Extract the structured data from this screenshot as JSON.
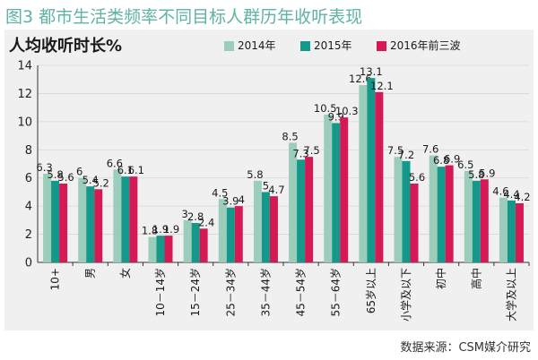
{
  "figure_title": "图3 都市生活类频率不同目标人群历年收听表现",
  "source_note": "数据来源：CSM媒介研究",
  "colors": {
    "title": "#5fb3a4",
    "panel_bg": "#f0f0f0",
    "axis": "#333333",
    "grid": "#d6d6d6"
  },
  "chart_data": {
    "type": "bar",
    "title": "人均收听时长%",
    "xlabel": "",
    "ylabel": "",
    "ylim": [
      0,
      14
    ],
    "yticks": [
      0,
      2,
      4,
      6,
      8,
      10,
      12,
      14
    ],
    "grid": true,
    "legend_position": "top",
    "categories": [
      "10+",
      "男",
      "女",
      "10－14岁",
      "15－24岁",
      "25－34岁",
      "35－44岁",
      "45－54岁",
      "55－64岁",
      "65岁以上",
      "小学及以下",
      "初中",
      "高中",
      "大学及以上"
    ],
    "series": [
      {
        "name": "2014年",
        "color": "#9ccdbb",
        "values": [
          6.3,
          6,
          6.6,
          1.8,
          3,
          4.5,
          5.8,
          8.5,
          10.5,
          12.6,
          7.5,
          7.6,
          6.5,
          4.6
        ]
      },
      {
        "name": "2015年",
        "color": "#13988a",
        "values": [
          5.8,
          5.4,
          6.1,
          1.9,
          2.8,
          3.9,
          5,
          7.3,
          9.9,
          13.1,
          7.2,
          6.8,
          5.8,
          4.4
        ]
      },
      {
        "name": "2016年前三波",
        "color": "#d41955",
        "values": [
          5.6,
          5.2,
          6.1,
          1.9,
          2.4,
          4,
          4.7,
          7.5,
          10.3,
          12.1,
          5.6,
          6.9,
          5.9,
          4.2
        ]
      }
    ]
  }
}
